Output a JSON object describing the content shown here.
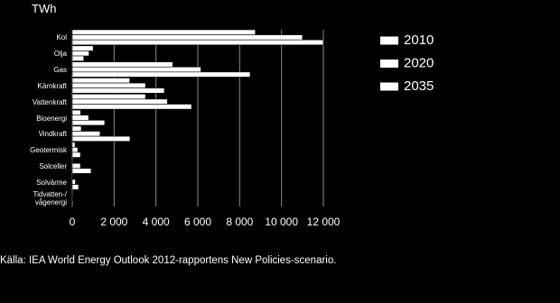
{
  "chart_data": {
    "type": "bar",
    "orientation": "horizontal",
    "y_label": "TWh",
    "source": "Källa: IEA World Energy Outlook 2012-rapportens New Policies-scenario.",
    "categories": [
      "Kol",
      "Olja",
      "Gas",
      "Kärnkraft",
      "Vattenkraft",
      "Bioenergi",
      "Vindkraft",
      "Geotermisk",
      "Solceller",
      "Solvärme",
      "Tidvatten-/\nvågenergi"
    ],
    "series": [
      {
        "name": "2010",
        "color": "#ffffff",
        "values": [
          8750,
          1000,
          4800,
          2750,
          3500,
          400,
          430,
          130,
          30,
          10,
          1
        ]
      },
      {
        "name": "2020",
        "color": "#ffffff",
        "values": [
          11000,
          800,
          6150,
          3500,
          4550,
          780,
          1330,
          260,
          390,
          150,
          5
        ]
      },
      {
        "name": "2035",
        "color": "#ffffff",
        "values": [
          12000,
          550,
          8500,
          4400,
          5700,
          1550,
          2760,
          390,
          900,
          300,
          40
        ]
      }
    ],
    "xlim": [
      0,
      12000
    ],
    "xticks": [
      0,
      {
        "value": 2000,
        "label": "2 000"
      },
      {
        "value": 4000,
        "label": "4 000"
      },
      {
        "value": 6000,
        "label": "6 000"
      },
      {
        "value": 8000,
        "label": "8 000"
      },
      {
        "value": 10000,
        "label": "10 000"
      },
      {
        "value": 12000,
        "label": "12 000"
      }
    ],
    "grid": true,
    "legend": "right"
  }
}
